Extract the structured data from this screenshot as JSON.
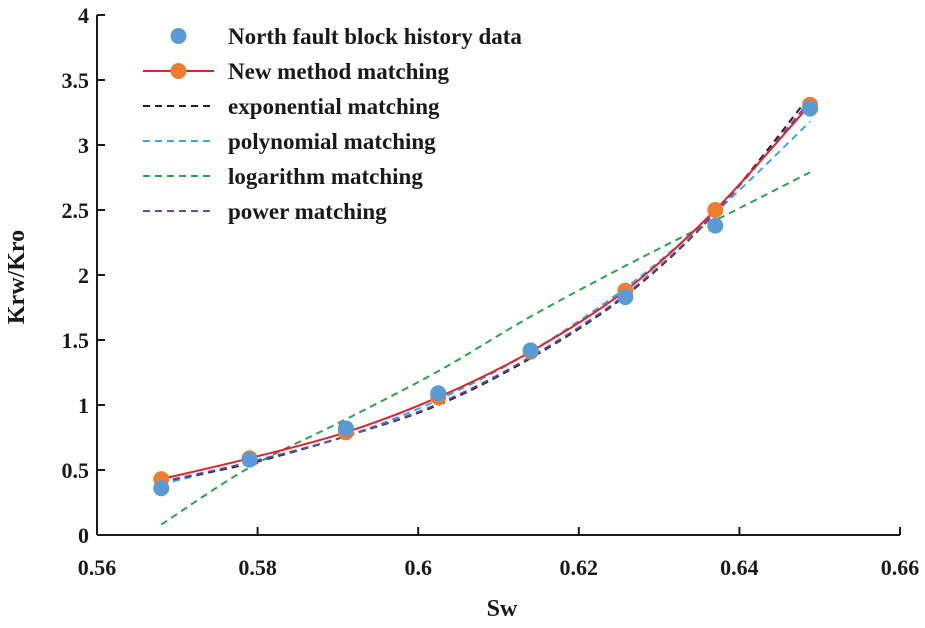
{
  "chart_data": {
    "type": "line",
    "title": "",
    "xlabel": "Sw",
    "ylabel": "Krw/Kro",
    "xlim": [
      0.56,
      0.66
    ],
    "ylim": [
      0,
      4
    ],
    "x_ticks": [
      0.56,
      0.58,
      0.6,
      0.62,
      0.64,
      0.66
    ],
    "x_tick_labels": [
      "0.56",
      "0.58",
      "0.6",
      "0.62",
      "0.64",
      "0.66"
    ],
    "y_ticks": [
      0,
      0.5,
      1,
      1.5,
      2,
      2.5,
      3,
      3.5,
      4
    ],
    "y_tick_labels": [
      "0",
      "0.5",
      "1",
      "1.5",
      "2",
      "2.5",
      "3",
      "3.5",
      "4"
    ],
    "grid": false,
    "legend_position": "top-left",
    "series": [
      {
        "name": "North fault block history data",
        "kind": "scatter",
        "color": "#5b9bd5",
        "x": [
          0.568,
          0.579,
          0.591,
          0.6025,
          0.614,
          0.6258,
          0.637,
          0.6488
        ],
        "y": [
          0.36,
          0.58,
          0.82,
          1.09,
          1.42,
          1.83,
          2.38,
          3.28
        ]
      },
      {
        "name": "New method matching",
        "kind": "line-marker",
        "color": "#e0232a",
        "marker_color": "#ed7d31",
        "x": [
          0.568,
          0.579,
          0.591,
          0.6025,
          0.614,
          0.6258,
          0.637,
          0.6488
        ],
        "y": [
          0.43,
          0.59,
          0.79,
          1.06,
          1.41,
          1.88,
          2.5,
          3.31
        ]
      },
      {
        "name": "exponential matching",
        "kind": "dashed",
        "color": "#1f1f3a",
        "x": [
          0.568,
          0.579,
          0.591,
          0.6025,
          0.614,
          0.6258,
          0.637,
          0.6488
        ],
        "y": [
          0.41,
          0.55,
          0.76,
          1.0,
          1.36,
          1.84,
          2.48,
          3.38
        ]
      },
      {
        "name": "polynomial matching",
        "kind": "dashed",
        "color": "#3ea8dc",
        "x": [
          0.568,
          0.579,
          0.591,
          0.6025,
          0.614,
          0.6258,
          0.637,
          0.6488
        ],
        "y": [
          0.39,
          0.56,
          0.76,
          1.04,
          1.41,
          1.9,
          2.48,
          3.18
        ]
      },
      {
        "name": "logarithm matching",
        "kind": "dashed",
        "color": "#2ca44a",
        "x": [
          0.568,
          0.579,
          0.591,
          0.6025,
          0.614,
          0.6258,
          0.637,
          0.6488
        ],
        "y": [
          0.08,
          0.52,
          0.89,
          1.26,
          1.68,
          2.07,
          2.42,
          2.79
        ]
      },
      {
        "name": "power matching",
        "kind": "dashed",
        "color": "#6a4a9b",
        "x": [
          0.568,
          0.579,
          0.591,
          0.6025,
          0.614,
          0.6258,
          0.637,
          0.6488
        ],
        "y": [
          0.41,
          0.56,
          0.76,
          1.01,
          1.37,
          1.85,
          2.48,
          3.34
        ]
      }
    ]
  }
}
